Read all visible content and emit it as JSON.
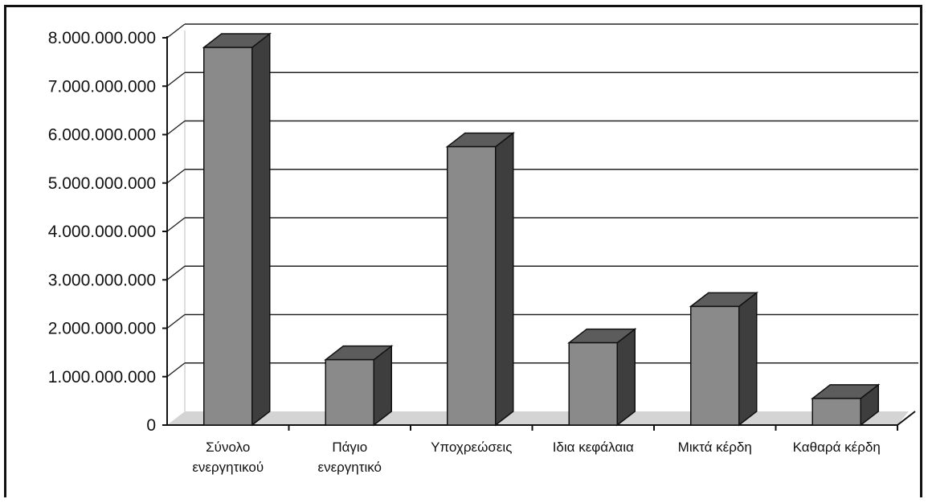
{
  "chart_data": {
    "type": "bar",
    "categories": [
      [
        "Σύνολο",
        "ενεργητικού"
      ],
      [
        "Πάγιο",
        "ενεργητικό"
      ],
      [
        "Υποχρεώσεις"
      ],
      [
        "Ιδια κεφάλαια"
      ],
      [
        "Μικτά κέρδη"
      ],
      [
        "Καθαρά κέρδη"
      ]
    ],
    "values": [
      7800000000,
      1350000000,
      5750000000,
      1700000000,
      2450000000,
      550000000
    ],
    "ylim": [
      0,
      8000000000
    ],
    "yticks": [
      {
        "value": 0,
        "label": "0"
      },
      {
        "value": 1000000000,
        "label": "1.000.000.000"
      },
      {
        "value": 2000000000,
        "label": "2.000.000.000"
      },
      {
        "value": 3000000000,
        "label": "3.000.000.000"
      },
      {
        "value": 4000000000,
        "label": "4.000.000.000"
      },
      {
        "value": 5000000000,
        "label": "5.000.000.000"
      },
      {
        "value": 6000000000,
        "label": "6.000.000.000"
      },
      {
        "value": 7000000000,
        "label": "7.000.000.000"
      },
      {
        "value": 8000000000,
        "label": "8.000.000.000"
      }
    ],
    "grid": true,
    "legend": "none",
    "title": "",
    "xlabel": "",
    "ylabel": "",
    "colors": {
      "bar_front": "#8a8a8a",
      "bar_top": "#5c5c5c",
      "bar_side": "#3e3e3e",
      "floor": "#d4d4d4",
      "grid": "#222222"
    }
  }
}
